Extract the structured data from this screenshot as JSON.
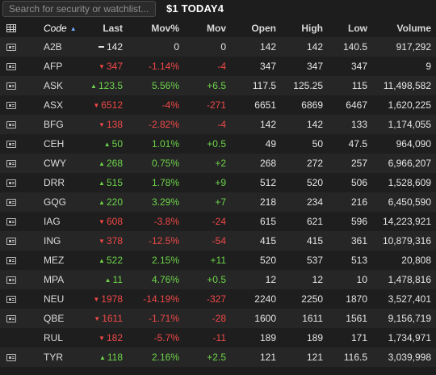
{
  "search": {
    "placeholder": "Search for security or watchlist..."
  },
  "watchlist": {
    "title": "$1 TODAY4"
  },
  "columns": {
    "code": "Code",
    "last": "Last",
    "movp": "Mov%",
    "mov": "Mov",
    "open": "Open",
    "high": "High",
    "low": "Low",
    "volume": "Volume"
  },
  "icons": {
    "header": "table-grid-icon",
    "row": "ticket-icon",
    "sort": "sort-ascending-icon"
  },
  "colors": {
    "up": "#6dd44a",
    "down": "#f04848",
    "flat": "#e6e6e6"
  },
  "rows": [
    {
      "code": "A2B",
      "dir": "flat",
      "icon": true,
      "last": "142",
      "movp": "0",
      "mov": "0",
      "open": "142",
      "high": "142",
      "low": "140.5",
      "volume": "917,292"
    },
    {
      "code": "AFP",
      "dir": "down",
      "icon": true,
      "last": "347",
      "movp": "-1.14%",
      "mov": "-4",
      "open": "347",
      "high": "347",
      "low": "347",
      "volume": "9"
    },
    {
      "code": "ASK",
      "dir": "up",
      "icon": true,
      "last": "123.5",
      "movp": "5.56%",
      "mov": "+6.5",
      "open": "117.5",
      "high": "125.25",
      "low": "115",
      "volume": "11,498,582"
    },
    {
      "code": "ASX",
      "dir": "down",
      "icon": true,
      "last": "6512",
      "movp": "-4%",
      "mov": "-271",
      "open": "6651",
      "high": "6869",
      "low": "6467",
      "volume": "1,620,225"
    },
    {
      "code": "BFG",
      "dir": "down",
      "icon": true,
      "last": "138",
      "movp": "-2.82%",
      "mov": "-4",
      "open": "142",
      "high": "142",
      "low": "133",
      "volume": "1,174,055"
    },
    {
      "code": "CEH",
      "dir": "up",
      "icon": true,
      "last": "50",
      "movp": "1.01%",
      "mov": "+0.5",
      "open": "49",
      "high": "50",
      "low": "47.5",
      "volume": "964,090"
    },
    {
      "code": "CWY",
      "dir": "up",
      "icon": true,
      "last": "268",
      "movp": "0.75%",
      "mov": "+2",
      "open": "268",
      "high": "272",
      "low": "257",
      "volume": "6,966,207"
    },
    {
      "code": "DRR",
      "dir": "up",
      "icon": true,
      "last": "515",
      "movp": "1.78%",
      "mov": "+9",
      "open": "512",
      "high": "520",
      "low": "506",
      "volume": "1,528,609"
    },
    {
      "code": "GQG",
      "dir": "up",
      "icon": true,
      "last": "220",
      "movp": "3.29%",
      "mov": "+7",
      "open": "218",
      "high": "234",
      "low": "216",
      "volume": "6,450,590"
    },
    {
      "code": "IAG",
      "dir": "down",
      "icon": true,
      "last": "608",
      "movp": "-3.8%",
      "mov": "-24",
      "open": "615",
      "high": "621",
      "low": "596",
      "volume": "14,223,921"
    },
    {
      "code": "ING",
      "dir": "down",
      "icon": true,
      "last": "378",
      "movp": "-12.5%",
      "mov": "-54",
      "open": "415",
      "high": "415",
      "low": "361",
      "volume": "10,879,316"
    },
    {
      "code": "MEZ",
      "dir": "up",
      "icon": true,
      "last": "522",
      "movp": "2.15%",
      "mov": "+11",
      "open": "520",
      "high": "537",
      "low": "513",
      "volume": "20,808"
    },
    {
      "code": "MPA",
      "dir": "up",
      "icon": true,
      "last": "11",
      "movp": "4.76%",
      "mov": "+0.5",
      "open": "12",
      "high": "12",
      "low": "10",
      "volume": "1,478,816"
    },
    {
      "code": "NEU",
      "dir": "down",
      "icon": true,
      "last": "1978",
      "movp": "-14.19%",
      "mov": "-327",
      "open": "2240",
      "high": "2250",
      "low": "1870",
      "volume": "3,527,401"
    },
    {
      "code": "QBE",
      "dir": "down",
      "icon": true,
      "last": "1611",
      "movp": "-1.71%",
      "mov": "-28",
      "open": "1600",
      "high": "1611",
      "low": "1561",
      "volume": "9,156,719"
    },
    {
      "code": "RUL",
      "dir": "down",
      "icon": false,
      "last": "182",
      "movp": "-5.7%",
      "mov": "-11",
      "open": "189",
      "high": "189",
      "low": "171",
      "volume": "1,734,971"
    },
    {
      "code": "TYR",
      "dir": "up",
      "icon": true,
      "last": "118",
      "movp": "2.16%",
      "mov": "+2.5",
      "open": "121",
      "high": "121",
      "low": "116.5",
      "volume": "3,039,998"
    }
  ]
}
